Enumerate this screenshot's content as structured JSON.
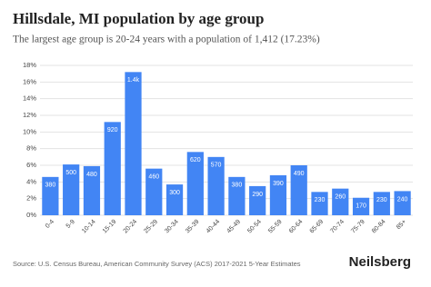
{
  "chart_data": {
    "type": "bar",
    "title": "Hillsdale, MI population by age group",
    "subtitle": "The largest age group is 20-24 years with a population of 1,412 (17.23%)",
    "categories": [
      "0-4",
      "5-9",
      "10-14",
      "15-19",
      "20-24",
      "25-29",
      "30-34",
      "35-39",
      "40-44",
      "45-49",
      "50-54",
      "55-59",
      "60-64",
      "65-69",
      "70-74",
      "75-79",
      "80-84",
      "85+"
    ],
    "values": [
      4.6,
      6.1,
      5.9,
      11.2,
      17.2,
      5.6,
      3.7,
      7.6,
      7.0,
      4.6,
      3.5,
      4.8,
      6.0,
      2.8,
      3.2,
      2.1,
      2.8,
      2.9
    ],
    "bar_labels": [
      "380",
      "500",
      "480",
      "920",
      "1.4k",
      "460",
      "300",
      "620",
      "570",
      "380",
      "290",
      "390",
      "490",
      "230",
      "260",
      "170",
      "230",
      "240"
    ],
    "color": "#4285f4",
    "ylim": [
      0,
      18
    ],
    "yticks": [
      {
        "value": 0,
        "label": "0%"
      },
      {
        "value": 2,
        "label": "2%"
      },
      {
        "value": 4,
        "label": "4%"
      },
      {
        "value": 6,
        "label": "6%"
      },
      {
        "value": 8,
        "label": "8%"
      },
      {
        "value": 10,
        "label": "10%"
      },
      {
        "value": 12,
        "label": "12%"
      },
      {
        "value": 14,
        "label": "14%"
      },
      {
        "value": 16,
        "label": "16%"
      },
      {
        "value": 18,
        "label": "18%"
      }
    ],
    "grid": true,
    "source": "Source: U.S. Census Bureau, American Community Survey (ACS) 2017-2021 5-Year Estimates",
    "brand": "Neilsberg"
  }
}
